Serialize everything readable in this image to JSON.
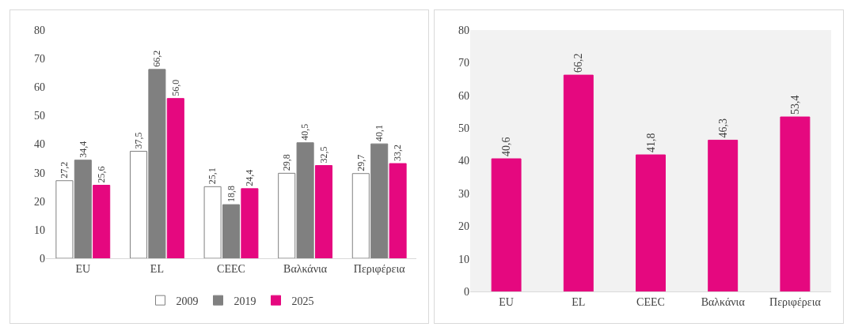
{
  "chart_data": [
    {
      "type": "bar",
      "categories": [
        "EU",
        "EL",
        "CEEC",
        "Βαλκάνια",
        "Περιφέρεια"
      ],
      "series": [
        {
          "name": "2009",
          "color": "#ffffff",
          "values": [
            27.2,
            37.5,
            25.1,
            29.8,
            29.7
          ],
          "value_labels": [
            "27,2",
            "37,5",
            "25,1",
            "29,8",
            "29,7"
          ]
        },
        {
          "name": "2019",
          "color": "#808080",
          "values": [
            34.4,
            66.2,
            18.8,
            40.5,
            40.1
          ],
          "value_labels": [
            "34,4",
            "66,2",
            "18,8",
            "40,5",
            "40,1"
          ]
        },
        {
          "name": "2025",
          "color": "#e5087f",
          "values": [
            25.6,
            56.0,
            24.4,
            32.5,
            33.2
          ],
          "value_labels": [
            "25,6",
            "56,0",
            "24,4",
            "32,5",
            "33,2"
          ]
        }
      ],
      "ylim": [
        0,
        80
      ],
      "yticks": [
        0,
        10,
        20,
        30,
        40,
        50,
        60,
        70,
        80
      ],
      "grid": false,
      "legend": "bottom"
    },
    {
      "type": "bar",
      "categories": [
        "EU",
        "EL",
        "CEEC",
        "Βαλκάνια",
        "Περιφέρεια"
      ],
      "values": [
        40.6,
        66.2,
        41.8,
        46.3,
        53.4
      ],
      "value_labels": [
        "40,6",
        "66,2",
        "41,8",
        "46,3",
        "53,4"
      ],
      "color": "#e5087f",
      "ylim": [
        0,
        80
      ],
      "yticks": [
        0,
        10,
        20,
        30,
        40,
        50,
        60,
        70,
        80
      ],
      "grid": false
    }
  ]
}
